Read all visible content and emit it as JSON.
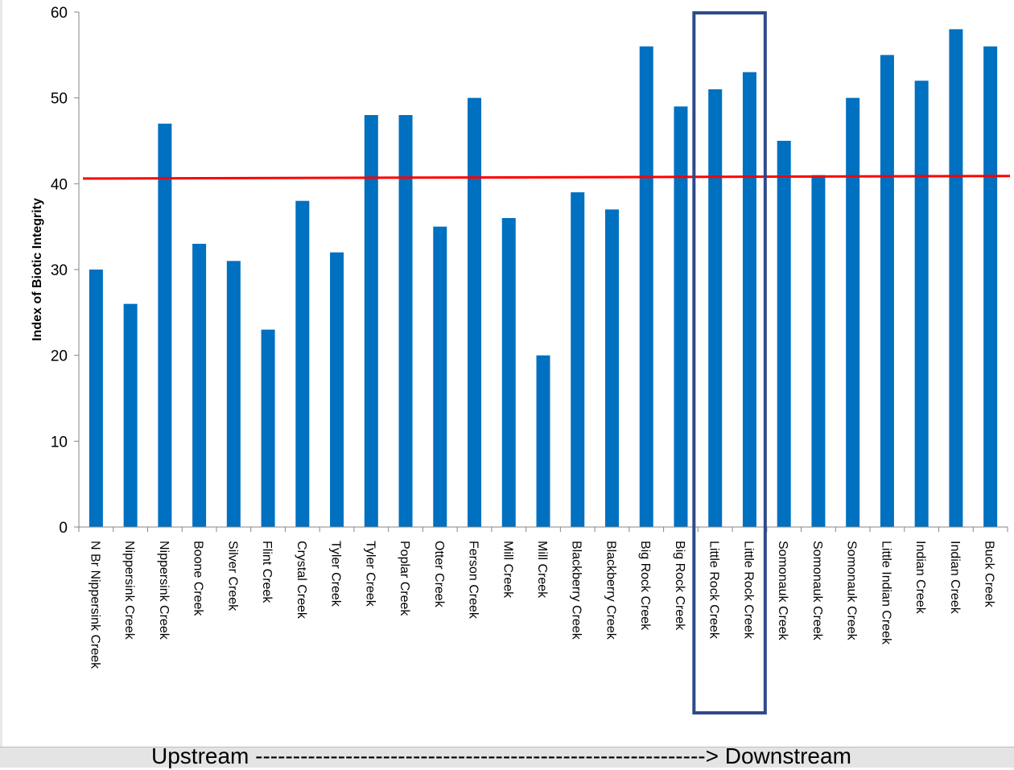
{
  "chart_data": {
    "type": "bar",
    "ylabel": "Index of Biotic Integrity",
    "xlabel": "Upstream ------------------------------------------------------------> Downstream",
    "ylim": [
      0,
      60
    ],
    "yticks": [
      0,
      10,
      20,
      30,
      40,
      50,
      60
    ],
    "categories": [
      "N Br Nippersink Creek",
      "Nippersink Creek",
      "Nippersink Creek",
      "Boone Creek",
      "Silver Creek",
      "Flint Creek",
      "Crystal Creek",
      "Tyler Creek",
      "Tyler Creek",
      "Poplar Creek",
      "Otter Creek",
      "Ferson Creek",
      "Mill Creek",
      "Mill Creek",
      "Blackberry Creek",
      "Blackberry Creek",
      "Big Rock Creek",
      "Big Rock Creek",
      "Little Rock Creek",
      "Little Rock Creek",
      "Somonauk Creek",
      "Somonauk Creek",
      "Somonauk Creek",
      "Little Indian Creek",
      "Indian Creek",
      "Indian Creek",
      "Buck Creek"
    ],
    "values": [
      30,
      26,
      47,
      33,
      31,
      23,
      38,
      32,
      48,
      48,
      35,
      50,
      36,
      20,
      39,
      37,
      56,
      49,
      51,
      53,
      45,
      41,
      50,
      55,
      52,
      58,
      56
    ],
    "reference_line": {
      "start": 40.6,
      "end": 40.9,
      "color": "#ff0000"
    },
    "highlight": {
      "from_index": 18,
      "to_index": 19,
      "color": "#2e4a8b"
    },
    "bar_color": "#0070c0",
    "grid": false,
    "legend": "none"
  }
}
